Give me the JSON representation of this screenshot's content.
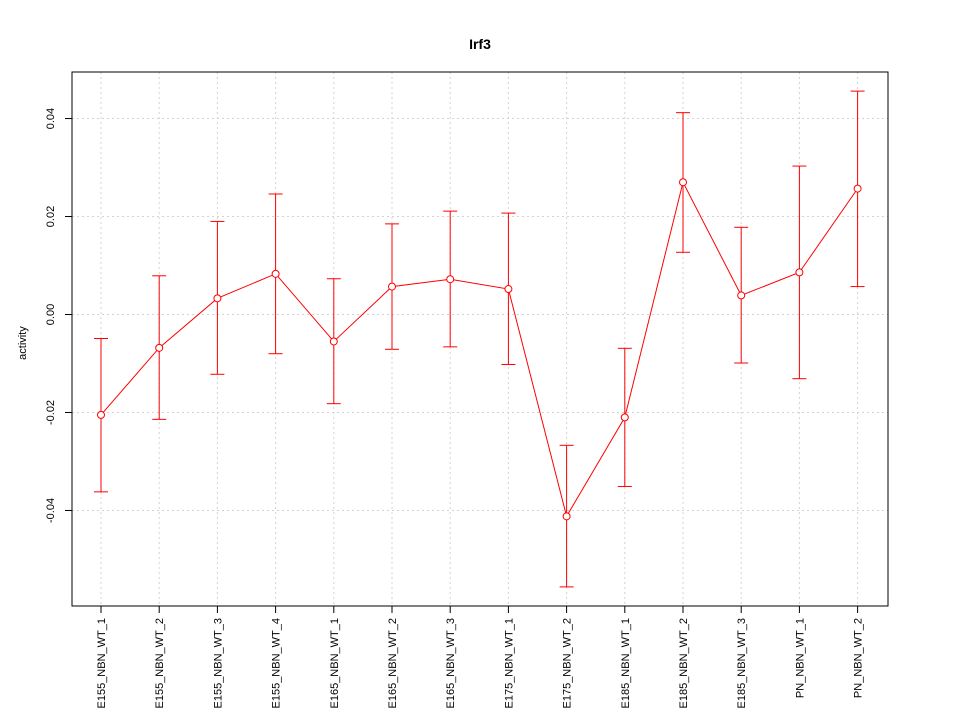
{
  "chart_data": {
    "type": "line",
    "title": "Irf3",
    "xlabel": "",
    "ylabel": "activity",
    "categories": [
      "E155_NBN_WT_1",
      "E155_NBN_WT_2",
      "E155_NBN_WT_3",
      "E155_NBN_WT_4",
      "E165_NBN_WT_1",
      "E165_NBN_WT_2",
      "E165_NBN_WT_3",
      "E175_NBN_WT_1",
      "E175_NBN_WT_2",
      "E185_NBN_WT_1",
      "E185_NBN_WT_2",
      "E185_NBN_WT_3",
      "PN_NBN_WT_1",
      "PN_NBN_WT_2"
    ],
    "series": [
      {
        "values": [
          -0.0205,
          -0.0068,
          0.0033,
          0.0083,
          -0.0055,
          0.0057,
          0.0072,
          0.0052,
          -0.0412,
          -0.021,
          0.027,
          0.0039,
          0.0086,
          0.0257
        ],
        "lower": [
          -0.0362,
          -0.0214,
          -0.0122,
          -0.008,
          -0.0182,
          -0.0071,
          -0.0066,
          -0.0102,
          -0.0556,
          -0.0351,
          0.0127,
          -0.0099,
          -0.0131,
          0.0057
        ],
        "upper": [
          -0.0049,
          0.0079,
          0.019,
          0.0246,
          0.0073,
          0.0185,
          0.0211,
          0.0207,
          -0.0267,
          -0.0069,
          0.0412,
          0.0178,
          0.0303,
          0.0456
        ],
        "color": "#ff0000"
      }
    ],
    "yticks": [
      -0.04,
      -0.02,
      0.0,
      0.02,
      0.04
    ],
    "ytick_labels": [
      "-0.04",
      "-0.02",
      "0.00",
      "0.02",
      "0.04"
    ],
    "ylim": [
      -0.0595,
      0.0495
    ],
    "grid": true,
    "legend": "none"
  }
}
